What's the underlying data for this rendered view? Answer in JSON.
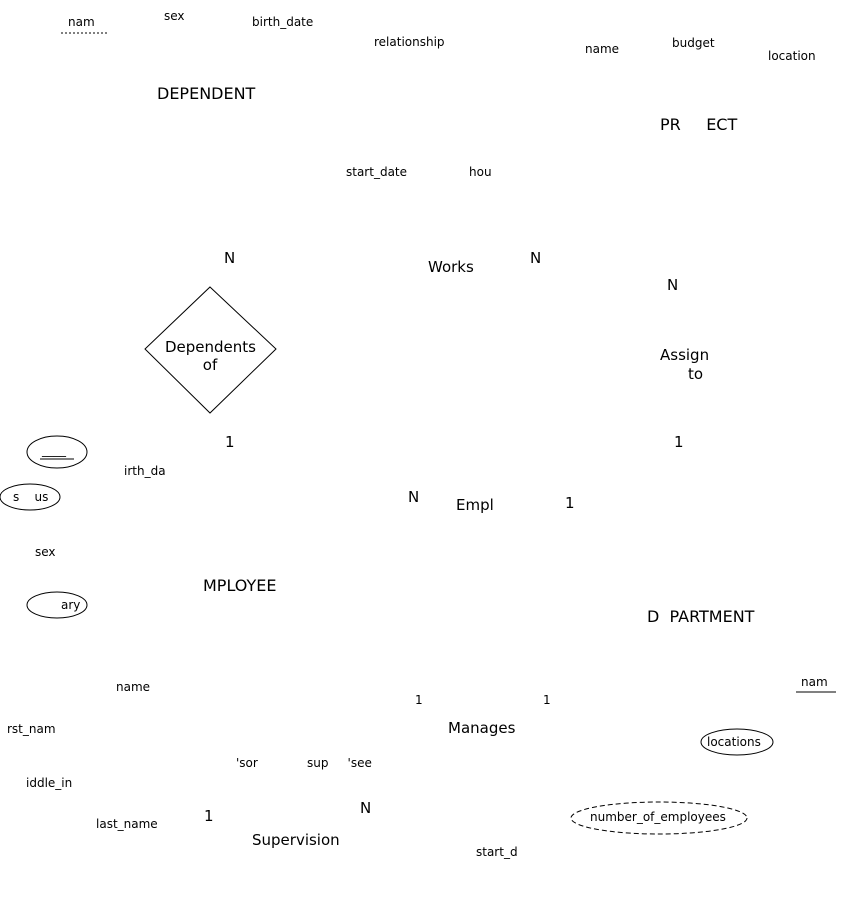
{
  "colors": {
    "ink": "#000000",
    "background": "#ffffff"
  },
  "entities": {
    "dependent": "DEPENDENT",
    "project": "PR     ECT",
    "employee": "MPLOYEE",
    "department": "D  PARTMENT"
  },
  "relationships": {
    "dependents_of_line1": "Dependents",
    "dependents_of_line2": "of",
    "works": "Works",
    "assign_line1": "Assign",
    "assign_line2": "to",
    "empl": "Empl",
    "manages": "Manages",
    "supervision": "Supervision"
  },
  "attributes": {
    "dep_name": "nam",
    "dep_sex": "sex",
    "dep_birth_date": "birth_date",
    "dep_relationship": "relationship",
    "proj_name": "name",
    "proj_budget": "budget",
    "proj_location": "location",
    "works_start_date": "start_date",
    "works_hours": "hou",
    "emp_id": "____",
    "emp_birth_date": "irth_da",
    "emp_status": "s    us",
    "emp_sex": "sex",
    "emp_salary": "ary",
    "emp_name": "name",
    "emp_first_name": "rst_nam",
    "emp_middle_initial": "iddle_in",
    "emp_last_name": "last_name",
    "sup_role_supervisor": "'sor",
    "sup_role_supervisee": "sup     'see",
    "dept_name": "nam",
    "dept_locations": "locations",
    "dept_number_of_employees": "number_of_employees",
    "manages_start_date": "start_d"
  },
  "cardinalities": {
    "works_left": "N",
    "works_right": "N",
    "assign_project": "N",
    "dependents_employee": "1",
    "assign_department": "1",
    "empl_employee": "N",
    "empl_department": "1",
    "manages_employee": "1",
    "manages_department": "1",
    "supervision_supervisor": "1",
    "supervision_supervisee": "N"
  }
}
